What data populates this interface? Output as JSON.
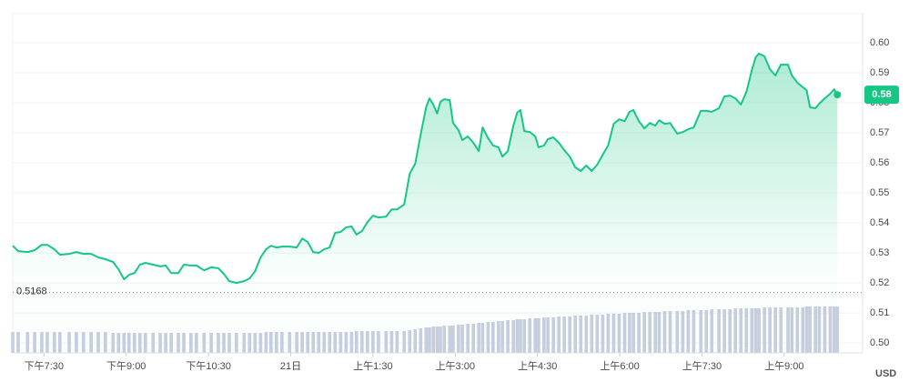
{
  "chart_data": {
    "type": "line",
    "color": "#16c784",
    "currency": "USD",
    "x": [
      18.93,
      19.03,
      19.2,
      19.33,
      19.46,
      19.56,
      19.69,
      19.79,
      19.96,
      20.09,
      20.22,
      20.36,
      20.49,
      20.62,
      20.76,
      20.86,
      20.96,
      21.05,
      21.15,
      21.25,
      21.35,
      21.49,
      21.62,
      21.72,
      21.82,
      21.95,
      22.05,
      22.18,
      22.28,
      22.42,
      22.55,
      22.68,
      22.78,
      22.88,
      23.01,
      23.15,
      23.25,
      23.35,
      23.45,
      23.55,
      23.64,
      23.74,
      23.84,
      23.98,
      24.11,
      24.21,
      24.31,
      24.41,
      24.51,
      24.61,
      24.71,
      24.81,
      24.91,
      25.01,
      25.11,
      25.2,
      25.3,
      25.4,
      25.5,
      25.6,
      25.74,
      25.84,
      25.94,
      26.07,
      26.17,
      26.27,
      26.37,
      26.47,
      26.53,
      26.6,
      26.67,
      26.73,
      26.8,
      26.9,
      26.96,
      27.06,
      27.13,
      27.23,
      27.33,
      27.43,
      27.5,
      27.6,
      27.69,
      27.79,
      27.86,
      27.96,
      28.06,
      28.13,
      28.19,
      28.26,
      28.36,
      28.46,
      28.52,
      28.62,
      28.69,
      28.79,
      28.89,
      28.99,
      29.09,
      29.19,
      29.29,
      29.39,
      29.49,
      29.59,
      29.69,
      29.79,
      29.89,
      29.99,
      30.09,
      30.18,
      30.25,
      30.35,
      30.45,
      30.55,
      30.65,
      30.72,
      30.82,
      30.92,
      31.05,
      31.15,
      31.25,
      31.35,
      31.48,
      31.58,
      31.68,
      31.81,
      31.91,
      32.01,
      32.11,
      32.21,
      32.31,
      32.41,
      32.48,
      32.54,
      32.64,
      32.74,
      32.84,
      32.94,
      33.07,
      33.14,
      33.24,
      33.34,
      33.41,
      33.47,
      33.57,
      33.64,
      33.74,
      33.84,
      33.91,
      33.97
    ],
    "values": [
      0.5324,
      0.5306,
      0.5303,
      0.5309,
      0.5327,
      0.5327,
      0.5312,
      0.5294,
      0.5297,
      0.5303,
      0.5297,
      0.5297,
      0.5285,
      0.5279,
      0.527,
      0.5245,
      0.5212,
      0.5227,
      0.5233,
      0.5261,
      0.5267,
      0.5261,
      0.5255,
      0.5258,
      0.5233,
      0.5233,
      0.5261,
      0.5258,
      0.5258,
      0.5242,
      0.5252,
      0.5249,
      0.523,
      0.5206,
      0.52,
      0.5206,
      0.5215,
      0.5239,
      0.5285,
      0.5312,
      0.5324,
      0.5318,
      0.5321,
      0.5321,
      0.5318,
      0.5348,
      0.5336,
      0.5303,
      0.53,
      0.5312,
      0.5318,
      0.5367,
      0.537,
      0.5385,
      0.5388,
      0.5361,
      0.5373,
      0.5403,
      0.5424,
      0.5418,
      0.5421,
      0.5445,
      0.5445,
      0.5461,
      0.5564,
      0.5597,
      0.5694,
      0.5785,
      0.5815,
      0.5794,
      0.5764,
      0.5803,
      0.5812,
      0.5809,
      0.5733,
      0.5709,
      0.5676,
      0.5688,
      0.5667,
      0.5639,
      0.5718,
      0.5682,
      0.5658,
      0.5652,
      0.5621,
      0.5639,
      0.5724,
      0.5767,
      0.5776,
      0.5706,
      0.5703,
      0.5688,
      0.5652,
      0.5658,
      0.5679,
      0.5685,
      0.5667,
      0.5642,
      0.5621,
      0.5585,
      0.5573,
      0.5591,
      0.5573,
      0.5594,
      0.5627,
      0.5658,
      0.573,
      0.5745,
      0.5739,
      0.577,
      0.5776,
      0.5739,
      0.5715,
      0.5733,
      0.5724,
      0.5742,
      0.573,
      0.5733,
      0.5697,
      0.5703,
      0.5712,
      0.5718,
      0.5773,
      0.5773,
      0.577,
      0.5782,
      0.5821,
      0.5824,
      0.5815,
      0.5794,
      0.5836,
      0.5909,
      0.5952,
      0.5964,
      0.5955,
      0.5912,
      0.5891,
      0.5927,
      0.5927,
      0.5891,
      0.5867,
      0.5852,
      0.5842,
      0.5785,
      0.5782,
      0.5797,
      0.5815,
      0.583,
      0.5845,
      0.5827
    ],
    "volume": {
      "color": "#c9cde0",
      "values": [
        23,
        23,
        23,
        23,
        23,
        23,
        23,
        23,
        23,
        23,
        23,
        23,
        23,
        23,
        22,
        22,
        22,
        22,
        22,
        22,
        22,
        22,
        22,
        22,
        22,
        22,
        22,
        22,
        22,
        22,
        22,
        22,
        22,
        22,
        22,
        22,
        22,
        22,
        22,
        23,
        23,
        23,
        23,
        23,
        23,
        23,
        23,
        23,
        23,
        23,
        23,
        23,
        23,
        23,
        23,
        24,
        24,
        24,
        24,
        24,
        24,
        24,
        24,
        24,
        25,
        26,
        27,
        28,
        28,
        29,
        29,
        29,
        30,
        30,
        30,
        31,
        31,
        32,
        32,
        33,
        33,
        34,
        34,
        35,
        35,
        36,
        36,
        37,
        37,
        37,
        38,
        38,
        38,
        39,
        39,
        39,
        40,
        40,
        40,
        41,
        41,
        41,
        42,
        42,
        42,
        43,
        43,
        43,
        44,
        44,
        44,
        44,
        45,
        45,
        45,
        45,
        46,
        46,
        46,
        46,
        47,
        47,
        47,
        47,
        48,
        48,
        48,
        48,
        49,
        49,
        49,
        49,
        49,
        49,
        50,
        50,
        50,
        50,
        50,
        50,
        50,
        50,
        51,
        51,
        51,
        51,
        51,
        51,
        51,
        51
      ]
    },
    "current_price": {
      "value": 0.5827,
      "label": "0.58"
    },
    "reference_line": 0.5168,
    "xlim": [
      18.93,
      34.43
    ],
    "xticks": [
      {
        "value": 19.5,
        "label": "下午7:30"
      },
      {
        "value": 21,
        "label": "下午9:00"
      },
      {
        "value": 22.5,
        "label": "下午10:30"
      },
      {
        "value": 24,
        "label": "21日"
      },
      {
        "value": 25.5,
        "label": "上午1:30"
      },
      {
        "value": 27,
        "label": "上午3:00"
      },
      {
        "value": 28.5,
        "label": "上午4:30"
      },
      {
        "value": 30,
        "label": "上午6:00"
      },
      {
        "value": 31.5,
        "label": "上午7:30"
      },
      {
        "value": 33,
        "label": "上午9:00"
      }
    ],
    "ylim": [
      0.4967,
      0.6097
    ],
    "yticks": [
      {
        "value": 0.5,
        "label": "0.50"
      },
      0.51,
      0.52,
      0.53,
      0.54,
      0.55,
      0.56,
      0.57,
      0.58,
      0.59,
      {
        "value": 0.6,
        "label": "0.60"
      }
    ],
    "grid": true
  }
}
